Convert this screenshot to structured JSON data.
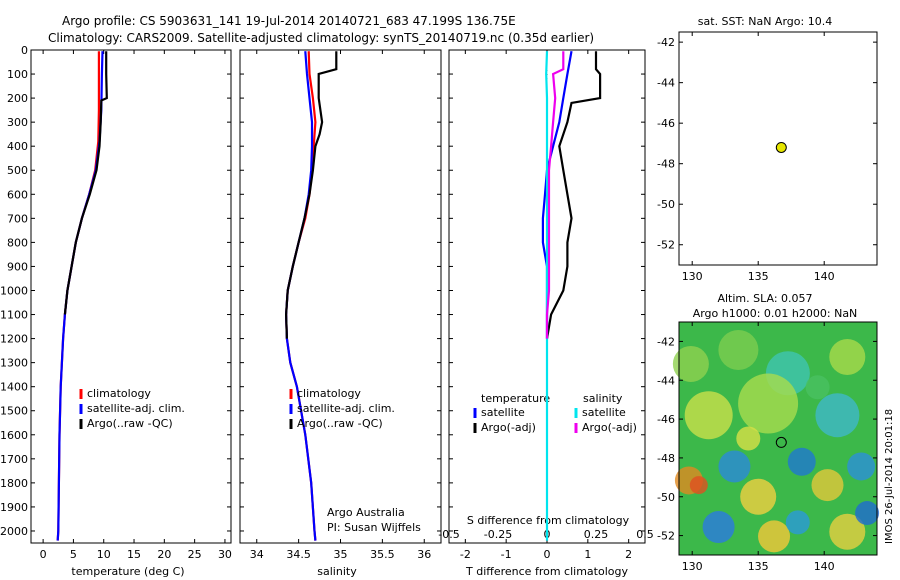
{
  "header": {
    "title_line1": "Argo profile: CS 5903631_141 19-Jul-2014 20140721_683 47.199S 136.75E",
    "title_line2": "Climatology: CARS2009. Satellite-adjusted climatology: synTS_20140719.nc (0.35d earlier)"
  },
  "colors": {
    "climatology": "#ff0000",
    "satellite": "#0000ff",
    "argo": "#000000",
    "sat_salinity": "#00e5ee",
    "argo_salinity": "#ee00ee",
    "argo_marker": "#e6e600"
  },
  "chart_data": [
    {
      "type": "line",
      "panel": "temperature",
      "xlabel": "temperature (deg C)",
      "ylabel": "",
      "xlim": [
        -2,
        31
      ],
      "ylim": [
        2050,
        0
      ],
      "xticks": [
        0,
        5,
        10,
        15,
        20,
        25,
        30
      ],
      "yticks": [
        0,
        100,
        200,
        300,
        400,
        500,
        600,
        700,
        800,
        900,
        1000,
        1100,
        1200,
        1300,
        1400,
        1500,
        1600,
        1700,
        1800,
        1900,
        2000
      ],
      "legend": [
        "climatology",
        "satellite-adj. clim.",
        "Argo(..raw -QC)"
      ],
      "series": [
        {
          "name": "climatology",
          "depth": [
            5,
            100,
            250,
            380,
            500,
            600,
            700,
            800,
            900,
            1000,
            1100,
            1200,
            1400,
            1600,
            1800,
            2000,
            2040
          ],
          "values": [
            9.2,
            9.2,
            9.2,
            9.1,
            8.6,
            7.6,
            6.4,
            5.4,
            4.7,
            4.0,
            3.6,
            3.3,
            2.9,
            2.7,
            2.6,
            2.5,
            2.4
          ]
        },
        {
          "name": "satellite-adj. clim.",
          "depth": [
            5,
            100,
            250,
            380,
            500,
            600,
            700,
            800,
            900,
            1000,
            1100,
            1200,
            1400,
            1600,
            1800,
            2000,
            2040
          ],
          "values": [
            9.8,
            9.7,
            9.6,
            9.3,
            8.7,
            7.6,
            6.4,
            5.4,
            4.7,
            4.0,
            3.6,
            3.3,
            2.9,
            2.7,
            2.6,
            2.5,
            2.4
          ]
        },
        {
          "name": "Argo(..raw -QC)",
          "depth": [
            5,
            100,
            200,
            210,
            300,
            400,
            500,
            600,
            700,
            800,
            900,
            1000,
            1100
          ],
          "values": [
            10.4,
            10.4,
            10.5,
            9.6,
            9.5,
            9.3,
            8.8,
            7.7,
            6.4,
            5.4,
            4.7,
            4.0,
            3.6
          ]
        }
      ]
    },
    {
      "type": "line",
      "panel": "salinity",
      "xlabel": "salinity",
      "xlim": [
        33.8,
        36.2
      ],
      "ylim": [
        2050,
        0
      ],
      "xticks": [
        34,
        34.5,
        35,
        35.5,
        36
      ],
      "legend": [
        "climatology",
        "satellite-adj. clim.",
        "Argo(..raw -QC)"
      ],
      "annotation": [
        "Argo Australia",
        "PI: Susan Wijffels"
      ],
      "series": [
        {
          "name": "climatology",
          "depth": [
            5,
            100,
            200,
            300,
            400,
            500,
            600,
            700,
            800,
            900,
            1000,
            1100,
            1200,
            1300,
            1400,
            1600,
            1800,
            2000,
            2040
          ],
          "values": [
            34.62,
            34.63,
            34.67,
            34.7,
            34.68,
            34.66,
            34.63,
            34.58,
            34.5,
            34.43,
            34.37,
            34.35,
            34.36,
            34.4,
            34.48,
            34.58,
            34.65,
            34.69,
            34.7
          ]
        },
        {
          "name": "satellite-adj. clim.",
          "depth": [
            5,
            100,
            200,
            300,
            400,
            500,
            600,
            700,
            800,
            900,
            1000,
            1100,
            1200,
            1300,
            1400,
            1600,
            1800,
            2000,
            2040
          ],
          "values": [
            34.58,
            34.6,
            34.63,
            34.66,
            34.66,
            34.65,
            34.62,
            34.57,
            34.5,
            34.43,
            34.37,
            34.35,
            34.36,
            34.4,
            34.48,
            34.58,
            34.65,
            34.69,
            34.7
          ]
        },
        {
          "name": "Argo(..raw -QC)",
          "depth": [
            5,
            80,
            100,
            200,
            300,
            350,
            400,
            500,
            600,
            700,
            800,
            900,
            1000,
            1100,
            1200
          ],
          "values": [
            34.95,
            34.95,
            34.74,
            34.74,
            34.78,
            34.75,
            34.7,
            34.67,
            34.63,
            34.57,
            34.5,
            34.43,
            34.37,
            34.35,
            34.36
          ]
        }
      ]
    },
    {
      "type": "line",
      "panel": "difference",
      "xlabel": "T difference from climatology",
      "xlabel_top": "S difference from climatology",
      "xlim": [
        -2.4,
        2.4
      ],
      "ylim": [
        2050,
        0
      ],
      "xticks": [
        -2,
        -1,
        0,
        1,
        2
      ],
      "xticks_top": [
        -0.5,
        -0.25,
        0,
        0.25,
        0.5
      ],
      "legend_headers": [
        "temperature",
        "salinity"
      ],
      "legend": [
        "satellite",
        "Argo(-adj)",
        "satellite",
        "Argo(-adj)"
      ],
      "series": [
        {
          "name": "satellite",
          "depth": [
            5,
            100,
            200,
            300,
            400,
            500,
            600,
            700,
            800,
            900,
            1000,
            1100,
            1200
          ],
          "values": [
            0.6,
            0.5,
            0.4,
            0.3,
            0.15,
            0.0,
            -0.05,
            -0.1,
            -0.1,
            0.0,
            0.0,
            0.0,
            0.0
          ]
        },
        {
          "name": "Argo(-adj)",
          "depth": [
            5,
            80,
            100,
            200,
            220,
            300,
            400,
            500,
            600,
            700,
            800,
            900,
            1000,
            1100,
            1200
          ],
          "values": [
            1.2,
            1.2,
            1.3,
            1.3,
            0.6,
            0.5,
            0.3,
            0.4,
            0.5,
            0.6,
            0.5,
            0.5,
            0.4,
            0.1,
            0.0
          ]
        },
        {
          "name": "satellite",
          "depth": [
            5,
            100,
            200,
            300,
            400,
            500,
            600,
            700,
            800,
            900,
            1000,
            1100,
            1200,
            1400,
            1600,
            1800,
            2040
          ],
          "values": [
            0.0,
            -0.02,
            0.0,
            0.0,
            0.0,
            0.0,
            0.0,
            0.0,
            0.0,
            0.0,
            0.0,
            0.0,
            0.0,
            0.0,
            0.0,
            0.0,
            0.0
          ]
        },
        {
          "name": "Argo(-adj)",
          "depth": [
            5,
            80,
            100,
            200,
            300,
            400,
            500,
            600,
            700,
            800,
            900,
            1000,
            1100,
            1200
          ],
          "values": [
            0.4,
            0.4,
            0.15,
            0.2,
            0.15,
            0.1,
            0.05,
            0.05,
            0.05,
            0.05,
            0.05,
            0.05,
            0.0,
            0.0
          ]
        }
      ]
    },
    {
      "type": "scatter",
      "panel": "sst_map",
      "title": "sat. SST: NaN Argo: 10.4",
      "xlim": [
        129,
        144
      ],
      "ylim": [
        -53,
        -41.5
      ],
      "xticks": [
        130,
        135,
        140
      ],
      "yticks": [
        -42,
        -44,
        -46,
        -48,
        -50,
        -52
      ],
      "points": [
        {
          "x": 136.75,
          "y": -47.2
        }
      ]
    },
    {
      "type": "heatmap",
      "panel": "sla_map",
      "title_line1": "Altim. SLA: 0.057",
      "title_line2": "Argo h1000: 0.01 h2000: NaN",
      "side_label": "IMOS 26-Jul-2014 20:01:18",
      "xlim": [
        129,
        144
      ],
      "ylim": [
        -53,
        -41
      ],
      "xticks": [
        130,
        135,
        140
      ],
      "yticks": [
        -42,
        -44,
        -46,
        -48,
        -50,
        -52
      ],
      "points": [
        {
          "x": 136.75,
          "y": -47.2
        }
      ]
    }
  ]
}
